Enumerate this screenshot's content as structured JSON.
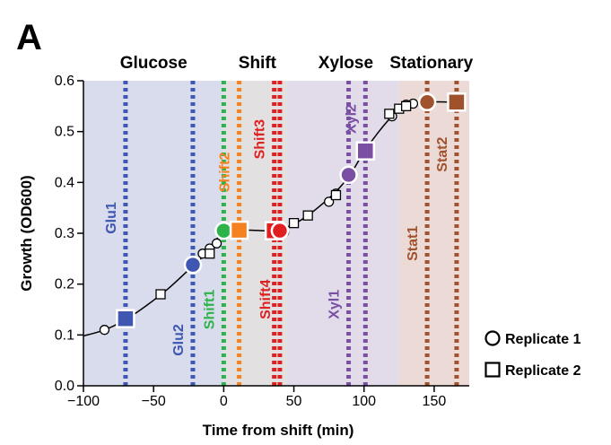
{
  "panel_label": "A",
  "chart_data": {
    "type": "scatter",
    "xlabel": "Time from shift (min)",
    "ylabel": "Growth (OD600)",
    "xlim": [
      -100,
      175
    ],
    "ylim": [
      0,
      0.6
    ],
    "xticks": [
      {
        "value": -100,
        "label": "−100"
      },
      {
        "value": -50,
        "label": "−50"
      },
      {
        "value": 0,
        "label": "0"
      },
      {
        "value": 50,
        "label": "50"
      },
      {
        "value": 100,
        "label": "100"
      },
      {
        "value": 150,
        "label": "150"
      }
    ],
    "yticks": [
      {
        "value": 0.0,
        "label": "0.0"
      },
      {
        "value": 0.1,
        "label": "0.1"
      },
      {
        "value": 0.2,
        "label": "0.2"
      },
      {
        "value": 0.3,
        "label": "0.3"
      },
      {
        "value": 0.4,
        "label": "0.4"
      },
      {
        "value": 0.5,
        "label": "0.5"
      },
      {
        "value": 0.6,
        "label": "0.6"
      }
    ],
    "phases": [
      {
        "name": "Glucose",
        "x_start": -100,
        "x_end": 0,
        "color": "#d9dcec"
      },
      {
        "name": "Shift",
        "x_start": 0,
        "x_end": 45,
        "color": "#e2e0e1"
      },
      {
        "name": "Xylose",
        "x_start": 45,
        "x_end": 125,
        "color": "#e1dbea"
      },
      {
        "name": "Stationary",
        "x_start": 125,
        "x_end": 175,
        "color": "#ebdad6"
      }
    ],
    "phase_labels": [
      {
        "text": "Glucose",
        "x": -50
      },
      {
        "text": "Shift",
        "x": 24
      },
      {
        "text": "Xylose",
        "x": 87
      },
      {
        "text": "Stationary",
        "x": 148
      }
    ],
    "growth_curve": [
      [
        -100,
        0.098
      ],
      [
        -85,
        0.11
      ],
      [
        -70,
        0.13
      ],
      [
        -55,
        0.158
      ],
      [
        -40,
        0.19
      ],
      [
        -25,
        0.228
      ],
      [
        -12,
        0.262
      ],
      [
        -3,
        0.294
      ],
      [
        10,
        0.305
      ],
      [
        20,
        0.306
      ],
      [
        30,
        0.305
      ],
      [
        40,
        0.308
      ],
      [
        50,
        0.318
      ],
      [
        60,
        0.335
      ],
      [
        70,
        0.357
      ],
      [
        80,
        0.382
      ],
      [
        90,
        0.415
      ],
      [
        100,
        0.46
      ],
      [
        110,
        0.498
      ],
      [
        120,
        0.53
      ],
      [
        130,
        0.55
      ],
      [
        145,
        0.558
      ],
      [
        160,
        0.558
      ]
    ],
    "series": [
      {
        "name": "Replicate 1",
        "marker": "circle",
        "points": [
          [
            -85,
            0.11
          ],
          [
            -15,
            0.26
          ],
          [
            -10,
            0.27
          ],
          [
            -5,
            0.28
          ],
          [
            43,
            0.302
          ],
          [
            75,
            0.362
          ],
          [
            80,
            0.378
          ],
          [
            120,
            0.53
          ],
          [
            130,
            0.553
          ],
          [
            135,
            0.555
          ]
        ]
      },
      {
        "name": "Replicate 2",
        "marker": "square",
        "points": [
          [
            -45,
            0.18
          ],
          [
            -10,
            0.26
          ],
          [
            40,
            0.308
          ],
          [
            50,
            0.32
          ],
          [
            60,
            0.335
          ],
          [
            80,
            0.375
          ],
          [
            118,
            0.535
          ],
          [
            125,
            0.545
          ],
          [
            130,
            0.55
          ]
        ]
      }
    ],
    "samples": [
      {
        "label": "Glu1",
        "x": -70,
        "y": 0.132,
        "marker": "square",
        "color": "#3f57b0",
        "label_pos": "above",
        "label_y": 0.33
      },
      {
        "label": "Glu2",
        "x": -22,
        "y": 0.238,
        "marker": "circle",
        "color": "#3f57b0",
        "label_pos": "below",
        "label_y": 0.09
      },
      {
        "label": "Shift1",
        "x": 0,
        "y": 0.305,
        "marker": "circle",
        "color": "#2db34a",
        "label_pos": "below",
        "label_y": 0.15
      },
      {
        "label": "Shift2",
        "x": 11,
        "y": 0.306,
        "marker": "square",
        "color": "#f5821f",
        "label_pos": "above",
        "label_y": 0.42
      },
      {
        "label": "Shift3",
        "x": 36,
        "y": 0.305,
        "marker": "square",
        "color": "#e02020",
        "label_pos": "above",
        "label_y": 0.485
      },
      {
        "label": "Shift4",
        "x": 40,
        "y": 0.305,
        "marker": "circle",
        "color": "#e02020",
        "label_pos": "below",
        "label_y": 0.17
      },
      {
        "label": "Xyl1",
        "x": 89,
        "y": 0.415,
        "marker": "circle",
        "color": "#7a4ea3",
        "label_pos": "below",
        "label_y": 0.16
      },
      {
        "label": "Xyl2",
        "x": 101,
        "y": 0.462,
        "marker": "square",
        "color": "#7a4ea3",
        "label_pos": "above",
        "label_y": 0.525
      },
      {
        "label": "Stat1",
        "x": 145,
        "y": 0.558,
        "marker": "circle",
        "color": "#a0522d",
        "label_pos": "below",
        "label_y": 0.28
      },
      {
        "label": "Stat2",
        "x": 166,
        "y": 0.558,
        "marker": "square",
        "color": "#a0522d",
        "label_pos": "above",
        "label_y": 0.455
      }
    ],
    "legend": {
      "placement": "bottom-right",
      "items": [
        {
          "label": "Replicate 1",
          "marker": "circle"
        },
        {
          "label": "Replicate 2",
          "marker": "square"
        }
      ]
    },
    "grid": false
  }
}
